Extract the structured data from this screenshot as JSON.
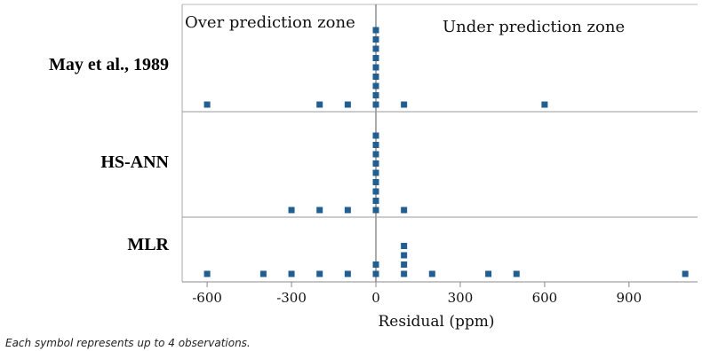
{
  "chart_data": {
    "type": "scatter",
    "subtype": "dotplot",
    "panels": [
      "May et al., 1989",
      "HS-ANN",
      "MLR"
    ],
    "zones": {
      "left": "Over prediction zone",
      "right": "Under prediction zone"
    },
    "xlabel": "Residual (ppm)",
    "xticks": [
      -600,
      -300,
      0,
      300,
      600,
      900
    ],
    "xtick_labels": [
      "-600",
      "-300",
      "0",
      "300",
      "600",
      "900"
    ],
    "xlim": [
      -700,
      1150
    ],
    "note": "Each symbol represents up to 4 observations.",
    "series": [
      {
        "name": "May et al., 1989",
        "stacks": [
          {
            "x": -600,
            "count": 1
          },
          {
            "x": -200,
            "count": 1
          },
          {
            "x": -100,
            "count": 1
          },
          {
            "x": 0,
            "count": 9
          },
          {
            "x": 100,
            "count": 1
          },
          {
            "x": 600,
            "count": 1
          }
        ]
      },
      {
        "name": "HS-ANN",
        "stacks": [
          {
            "x": -300,
            "count": 1
          },
          {
            "x": -200,
            "count": 1
          },
          {
            "x": -100,
            "count": 1
          },
          {
            "x": 0,
            "count": 9
          },
          {
            "x": 100,
            "count": 1
          }
        ]
      },
      {
        "name": "MLR",
        "stacks": [
          {
            "x": -600,
            "count": 1
          },
          {
            "x": -400,
            "count": 1
          },
          {
            "x": -300,
            "count": 1
          },
          {
            "x": -200,
            "count": 1
          },
          {
            "x": -100,
            "count": 1
          },
          {
            "x": 0,
            "count": 2
          },
          {
            "x": 100,
            "count": 4
          },
          {
            "x": 200,
            "count": 1
          },
          {
            "x": 400,
            "count": 1
          },
          {
            "x": 500,
            "count": 1
          },
          {
            "x": 1100,
            "count": 1
          }
        ]
      }
    ],
    "colors": {
      "marker": "#1f5f95",
      "axis": "#555555",
      "divider": "#9a9a9a"
    },
    "grid": false
  }
}
